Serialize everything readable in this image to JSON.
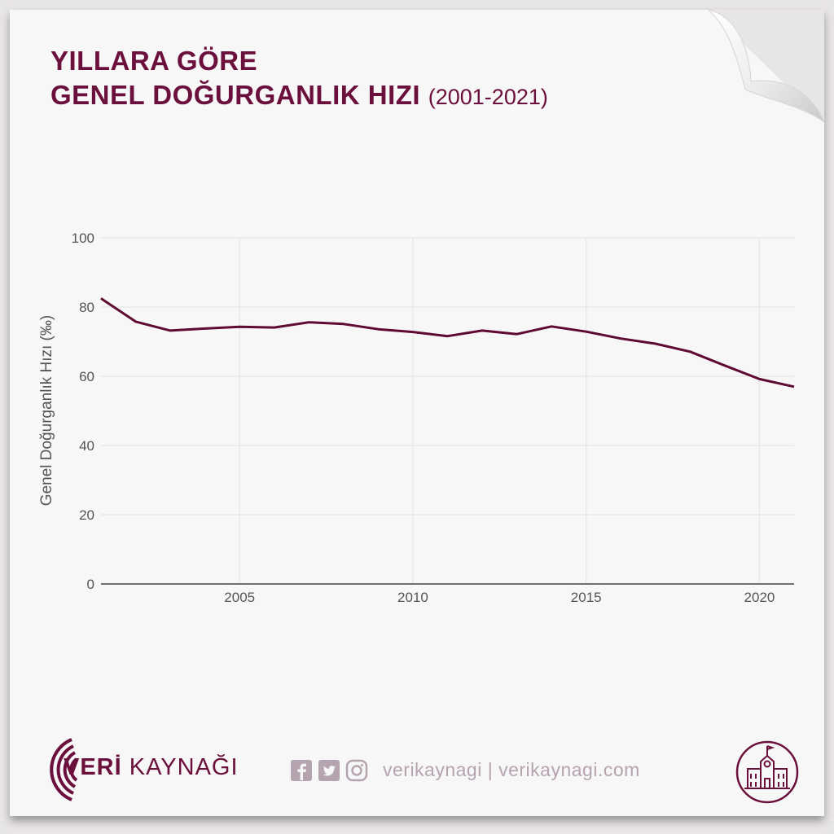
{
  "title": {
    "line1": "YILLARA GÖRE",
    "line2": "GENEL DOĞURGANLIK HIZI",
    "range": "(2001-2021)"
  },
  "chart_data": {
    "type": "line",
    "ylabel": "Genel Doğurganlık Hızı (‰)",
    "xlabel": "",
    "ylim": [
      0,
      100
    ],
    "xlim": [
      2001,
      2021
    ],
    "yticks": [
      0,
      20,
      40,
      60,
      80,
      100
    ],
    "xticks": [
      2005,
      2010,
      2015,
      2020
    ],
    "grid": true,
    "series": [
      {
        "color": "#5e0a32",
        "x": [
          2001,
          2002,
          2003,
          2004,
          2005,
          2006,
          2007,
          2008,
          2009,
          2010,
          2011,
          2012,
          2013,
          2014,
          2015,
          2016,
          2017,
          2018,
          2019,
          2020,
          2021
        ],
        "y": [
          82.5,
          75.8,
          73.2,
          73.8,
          74.3,
          74.1,
          75.6,
          75.1,
          73.6,
          72.8,
          71.6,
          73.2,
          72.2,
          74.4,
          72.9,
          70.9,
          69.4,
          67.1,
          63.1,
          59.2,
          57.0
        ]
      }
    ]
  },
  "footer": {
    "brand_bold": "VERİ",
    "brand_rest": " KAYNAĞI",
    "handle": "verikaynagi | verikaynagi.com",
    "social_icons": [
      "facebook-icon",
      "twitter-icon",
      "instagram-icon"
    ]
  },
  "colors": {
    "accent": "#6b0f3c",
    "line": "#5e0a32",
    "muted": "#b6a3b0",
    "grid": "#e6e6e6",
    "paper": "#f7f7f7"
  }
}
